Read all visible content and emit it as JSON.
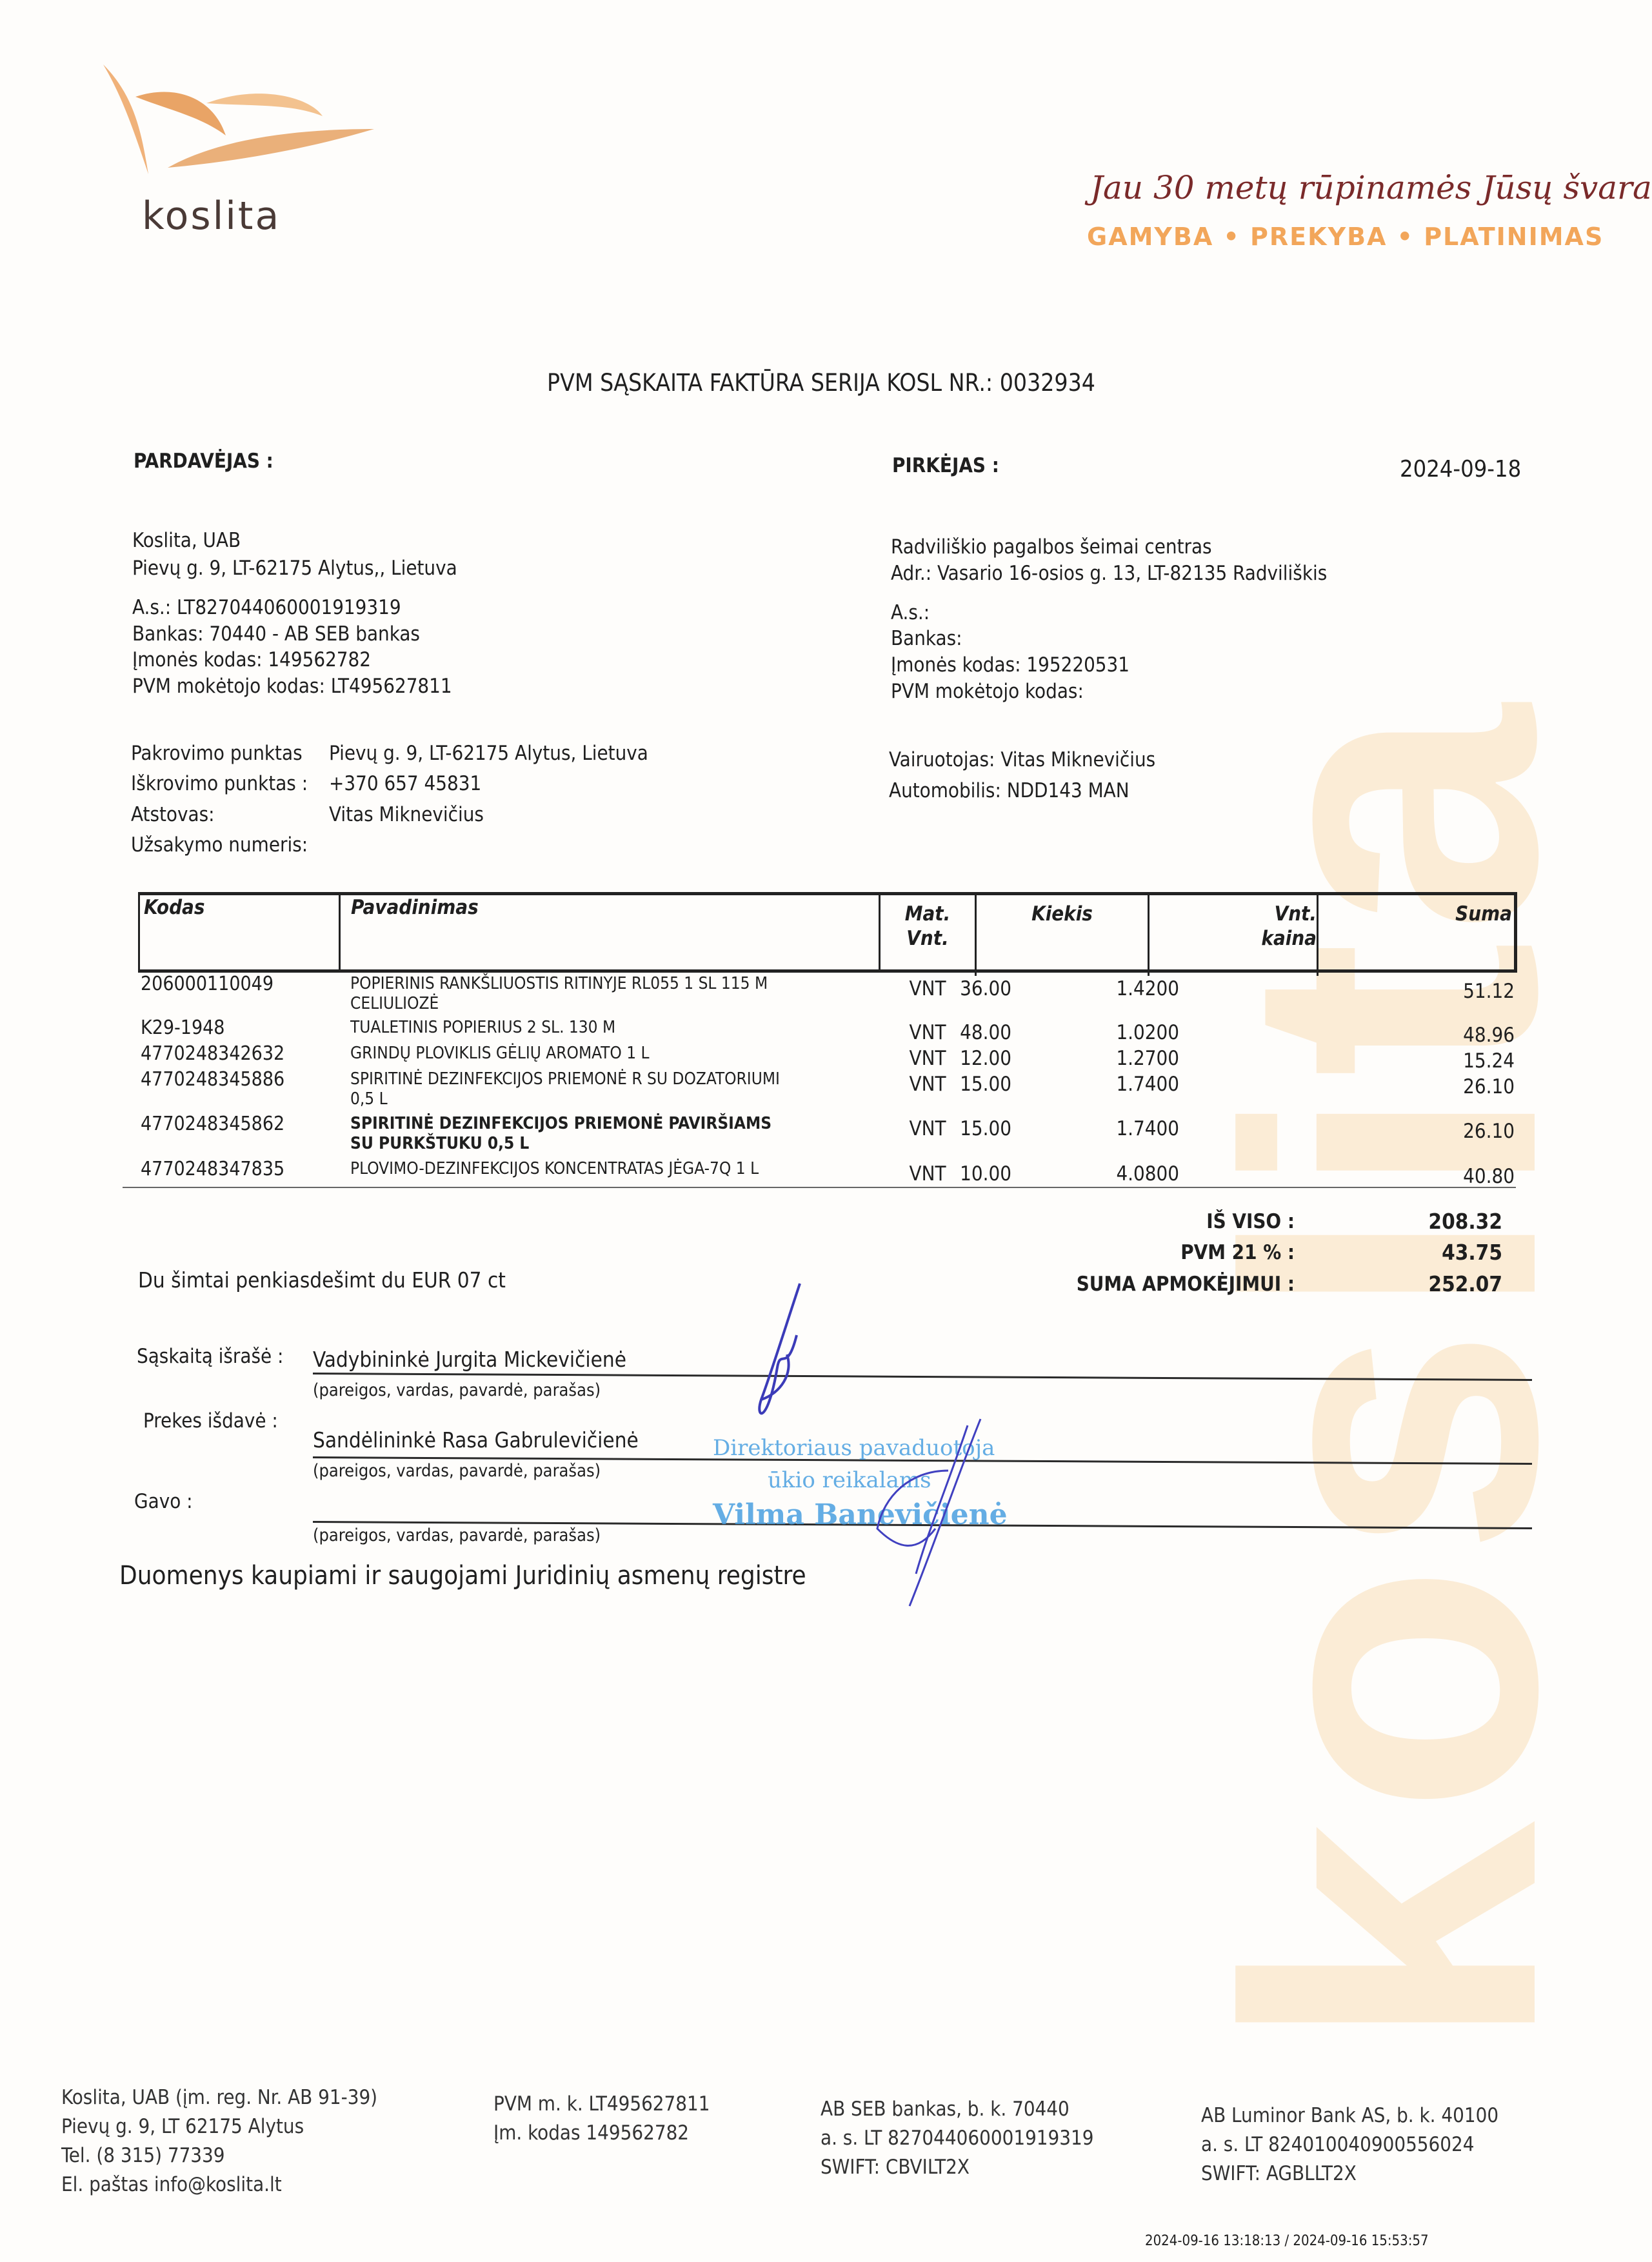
{
  "header": {
    "logo_text": "koslita",
    "slogan": "Jau 30 metų rūpinamės Jūsų švara",
    "tagline": "GAMYBA • PREKYBA • PLATINIMAS",
    "watermark": "koslita",
    "brand_color": "#f2a65a"
  },
  "title": "PVM SĄSKAITA FAKTŪRA  SERIJA KOSL  NR.: 0032934",
  "date": "2024-09-18",
  "seller": {
    "heading": "PARDAVĖJAS :",
    "name": "Koslita, UAB",
    "address": "Pievų g. 9, LT-62175 Alytus,, Lietuva",
    "account": "A.s.: LT827044060001919319",
    "bank": "Bankas: 70440 - AB SEB bankas",
    "company_code": "Įmonės kodas: 149562782",
    "vat_code": "PVM mokėtojo kodas: LT495627811"
  },
  "buyer": {
    "heading": "PIRKĖJAS :",
    "name": "Radviliškio pagalbos šeimai centras",
    "address": "Adr.: Vasario 16-osios g. 13, LT-82135 Radviliškis",
    "account": "A.s.:",
    "bank": "Bankas:",
    "company_code": "Įmonės kodas: 195220531",
    "vat_code": "PVM mokėtojo kodas:"
  },
  "shipping": {
    "loading_label": "Pakrovimo punktas",
    "loading_value": "Pievų g. 9, LT-62175 Alytus,  Lietuva",
    "unloading_label": "Iškrovimo punktas :",
    "unloading_value": "+370 657 45831",
    "representative_label": "Atstovas:",
    "representative_value": "Vitas Miknevičius",
    "order_label": "Užsakymo numeris:",
    "driver": "Vairuotojas: Vitas Miknevičius",
    "vehicle": "Automobilis: NDD143 MAN"
  },
  "table": {
    "headers": {
      "code": "Kodas",
      "name": "Pavadinimas",
      "unit1": "Mat.",
      "unit2": "Vnt.",
      "qty": "Kiekis",
      "price1": "Vnt.",
      "price2": "kaina",
      "sum": "Suma"
    },
    "rows": [
      {
        "code": "206000110049",
        "name": "POPIERINIS RANKŠLIUOSTIS RITINYJE RL055 1 SL 115 M",
        "name2": "CELIULIOZĖ",
        "unit": "VNT",
        "qty": "36.00",
        "price": "1.4200",
        "sum": "51.12"
      },
      {
        "code": "K29-1948",
        "name": "TUALETINIS POPIERIUS 2 SL. 130 M",
        "name2": "",
        "unit": "VNT",
        "qty": "48.00",
        "price": "1.0200",
        "sum": "48.96"
      },
      {
        "code": "4770248342632",
        "name": "GRINDŲ PLOVIKLIS GĖLIŲ AROMATO 1 L",
        "name2": "",
        "unit": "VNT",
        "qty": "12.00",
        "price": "1.2700",
        "sum": "15.24"
      },
      {
        "code": "4770248345886",
        "name": "SPIRITINĖ DEZINFEKCIJOS PRIEMONĖ R SU DOZATORIUMI",
        "name2": "0,5 L",
        "unit": "VNT",
        "qty": "15.00",
        "price": "1.7400",
        "sum": "26.10"
      },
      {
        "code": "4770248345862",
        "name": "SPIRITINĖ DEZINFEKCIJOS PRIEMONĖ PAVIRŠIAMS",
        "name2": "SU PURKŠTUKU 0,5 L",
        "unit": "VNT",
        "qty": "15.00",
        "price": "1.7400",
        "sum": "26.10"
      },
      {
        "code": "4770248347835",
        "name": "PLOVIMO-DEZINFEKCIJOS KONCENTRATAS JĖGA-7Q 1 L",
        "name2": "",
        "unit": "VNT",
        "qty": "10.00",
        "price": "4.0800",
        "sum": "40.80"
      }
    ]
  },
  "totals": {
    "subtotal_label": "IŠ VISO :",
    "subtotal": "208.32",
    "vat_label": "PVM 21 % :",
    "vat": "43.75",
    "total_label": "SUMA APMOKĖJIMUI :",
    "total": "252.07",
    "in_words": "Du šimtai penkiasdešimt du  EUR 07 ct"
  },
  "signatures": {
    "issued_label": "Sąskaitą išrašė :",
    "issued_name": "Vadybininkė Jurgita Mickevičienė",
    "released_label": "Prekes išdavė :",
    "released_name": "Sandėlininkė Rasa Gabrulevičienė",
    "received_label": "Gavo :",
    "caption": "(pareigos,  vardas,  pavardė,  parašas)",
    "stamp_line1": "Direktoriaus pavaduotoja",
    "stamp_line2": "ūkio reikalams",
    "stamp_line3": "Vilma Banevičienė"
  },
  "registry_note": "Duomenys kaupiami ir saugojami Juridinių asmenų registre",
  "footer": {
    "col1": [
      "Koslita, UAB (įm. reg. Nr. AB 91-39)",
      "Pievų g. 9, LT 62175 Alytus",
      "Tel. (8 315) 77339",
      "El. paštas info@koslita.lt"
    ],
    "col2": [
      "PVM m. k. LT495627811",
      "Įm. kodas 149562782"
    ],
    "col3": [
      "AB SEB bankas, b. k. 70440",
      "a. s. LT 827044060001919319",
      "SWIFT: CBVILT2X"
    ],
    "col4": [
      "AB Luminor Bank AS, b. k. 40100",
      "a. s. LT 824010040900556024",
      "SWIFT: AGBLLT2X"
    ],
    "timestamp": "2024-09-16  13:18:13 / 2024-09-16  15:53:57"
  }
}
